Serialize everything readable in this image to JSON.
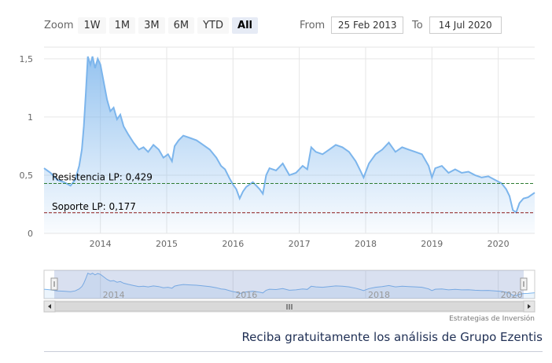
{
  "range_selector": {
    "zoom_label": "Zoom",
    "buttons": [
      "1W",
      "1M",
      "3M",
      "6M",
      "YTD",
      "All"
    ],
    "active": "All",
    "from_label": "From",
    "from_value": "25 Feb 2013",
    "to_label": "To",
    "to_value": "14 Jul 2020"
  },
  "credits": "Estrategias de Inversión",
  "cta_text": "Reciba gratuitamente los análisis de Grupo Ezentis",
  "colors": {
    "series_line": "#7cb5ec",
    "resistance": "#2e7d32",
    "support": "#8b1a1a"
  },
  "chart_data": {
    "type": "area",
    "x_format": "decimal_year",
    "xlim": [
      2013.15,
      2020.55
    ],
    "ylim": [
      0,
      1.6
    ],
    "yticks": [
      0,
      0.5,
      1,
      1.5
    ],
    "ytick_labels": [
      "0",
      "0,5",
      "1",
      "1,5"
    ],
    "xticks": [
      2014,
      2015,
      2016,
      2017,
      2018,
      2019,
      2020
    ],
    "xtick_labels": [
      "2014",
      "2015",
      "2016",
      "2017",
      "2018",
      "2019",
      "2020"
    ],
    "navigator_ticks": [
      2014,
      2016,
      2018,
      2020
    ],
    "navigator_labels": [
      "2014",
      "2016",
      "2018",
      "2020"
    ],
    "grid": true,
    "series": [
      {
        "values": [
          [
            2013.15,
            0.56
          ],
          [
            2013.25,
            0.52
          ],
          [
            2013.35,
            0.46
          ],
          [
            2013.45,
            0.44
          ],
          [
            2013.55,
            0.41
          ],
          [
            2013.62,
            0.46
          ],
          [
            2013.68,
            0.58
          ],
          [
            2013.72,
            0.72
          ],
          [
            2013.75,
            0.92
          ],
          [
            2013.78,
            1.2
          ],
          [
            2013.81,
            1.52
          ],
          [
            2013.85,
            1.45
          ],
          [
            2013.88,
            1.52
          ],
          [
            2013.92,
            1.42
          ],
          [
            2013.96,
            1.5
          ],
          [
            2014.0,
            1.45
          ],
          [
            2014.05,
            1.3
          ],
          [
            2014.1,
            1.15
          ],
          [
            2014.15,
            1.05
          ],
          [
            2014.2,
            1.08
          ],
          [
            2014.25,
            0.98
          ],
          [
            2014.3,
            1.02
          ],
          [
            2014.35,
            0.92
          ],
          [
            2014.42,
            0.85
          ],
          [
            2014.5,
            0.78
          ],
          [
            2014.58,
            0.72
          ],
          [
            2014.65,
            0.74
          ],
          [
            2014.72,
            0.7
          ],
          [
            2014.8,
            0.76
          ],
          [
            2014.88,
            0.72
          ],
          [
            2014.95,
            0.65
          ],
          [
            2015.02,
            0.68
          ],
          [
            2015.08,
            0.62
          ],
          [
            2015.12,
            0.75
          ],
          [
            2015.18,
            0.8
          ],
          [
            2015.25,
            0.84
          ],
          [
            2015.35,
            0.82
          ],
          [
            2015.45,
            0.8
          ],
          [
            2015.55,
            0.76
          ],
          [
            2015.65,
            0.72
          ],
          [
            2015.75,
            0.65
          ],
          [
            2015.82,
            0.58
          ],
          [
            2015.88,
            0.55
          ],
          [
            2015.95,
            0.47
          ],
          [
            2016.0,
            0.42
          ],
          [
            2016.05,
            0.38
          ],
          [
            2016.1,
            0.3
          ],
          [
            2016.15,
            0.36
          ],
          [
            2016.2,
            0.4
          ],
          [
            2016.3,
            0.44
          ],
          [
            2016.4,
            0.38
          ],
          [
            2016.45,
            0.34
          ],
          [
            2016.5,
            0.5
          ],
          [
            2016.55,
            0.56
          ],
          [
            2016.65,
            0.54
          ],
          [
            2016.75,
            0.6
          ],
          [
            2016.85,
            0.5
          ],
          [
            2016.95,
            0.52
          ],
          [
            2017.05,
            0.58
          ],
          [
            2017.12,
            0.55
          ],
          [
            2017.18,
            0.74
          ],
          [
            2017.25,
            0.7
          ],
          [
            2017.35,
            0.68
          ],
          [
            2017.45,
            0.72
          ],
          [
            2017.55,
            0.76
          ],
          [
            2017.65,
            0.74
          ],
          [
            2017.75,
            0.7
          ],
          [
            2017.85,
            0.62
          ],
          [
            2017.92,
            0.54
          ],
          [
            2017.97,
            0.48
          ],
          [
            2018.05,
            0.6
          ],
          [
            2018.15,
            0.68
          ],
          [
            2018.25,
            0.72
          ],
          [
            2018.35,
            0.78
          ],
          [
            2018.45,
            0.7
          ],
          [
            2018.55,
            0.74
          ],
          [
            2018.65,
            0.72
          ],
          [
            2018.75,
            0.7
          ],
          [
            2018.85,
            0.68
          ],
          [
            2018.95,
            0.58
          ],
          [
            2019.0,
            0.48
          ],
          [
            2019.05,
            0.56
          ],
          [
            2019.15,
            0.58
          ],
          [
            2019.25,
            0.52
          ],
          [
            2019.35,
            0.55
          ],
          [
            2019.45,
            0.52
          ],
          [
            2019.55,
            0.53
          ],
          [
            2019.65,
            0.5
          ],
          [
            2019.75,
            0.48
          ],
          [
            2019.85,
            0.49
          ],
          [
            2019.95,
            0.46
          ],
          [
            2020.05,
            0.43
          ],
          [
            2020.12,
            0.38
          ],
          [
            2020.17,
            0.32
          ],
          [
            2020.22,
            0.2
          ],
          [
            2020.27,
            0.18
          ],
          [
            2020.32,
            0.26
          ],
          [
            2020.38,
            0.3
          ],
          [
            2020.45,
            0.31
          ],
          [
            2020.55,
            0.35
          ]
        ]
      }
    ],
    "annotations": [
      {
        "label": "Resistencia LP: 0,429",
        "y": 0.429,
        "style": "dashed"
      },
      {
        "label": "Soporte LP: 0,177",
        "y": 0.177,
        "style": "dashed"
      }
    ]
  }
}
